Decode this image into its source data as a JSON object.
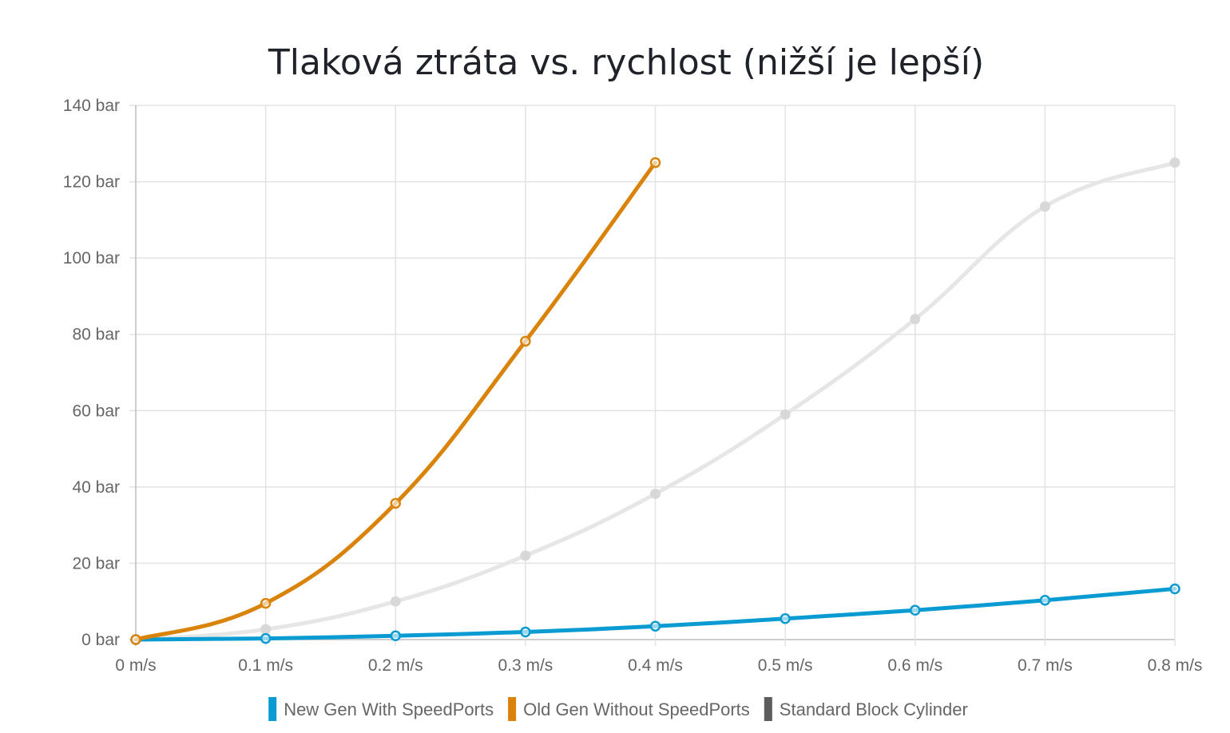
{
  "chart_data": {
    "type": "line",
    "title": "Tlaková ztráta vs. rychlost (nižší je lepší)",
    "xlabel": "",
    "ylabel": "",
    "x": [
      0,
      0.1,
      0.2,
      0.3,
      0.4,
      0.5,
      0.6,
      0.7,
      0.8
    ],
    "x_tick_labels": [
      "0 m/s",
      "0.1 m/s",
      "0.2 m/s",
      "0.3 m/s",
      "0.4 m/s",
      "0.5 m/s",
      "0.6 m/s",
      "0.7 m/s",
      "0.8 m/s"
    ],
    "y_tick_labels": [
      "0 bar",
      "20 bar",
      "40 bar",
      "60 bar",
      "80 bar",
      "100 bar",
      "120 bar",
      "140 bar"
    ],
    "y_ticks": [
      0,
      20,
      40,
      60,
      80,
      100,
      120,
      140
    ],
    "xlim": [
      0,
      0.8
    ],
    "ylim": [
      0,
      140
    ],
    "grid": true,
    "legend_position": "bottom-center",
    "series": [
      {
        "name": "New Gen With SpeedPorts",
        "color": "#0a9bd2",
        "values": [
          0,
          0.3,
          1,
          2,
          3.5,
          5.5,
          7.7,
          10.3,
          13.3
        ],
        "dimmed": false
      },
      {
        "name": "Old Gen Without SpeedPorts",
        "color": "#d9830b",
        "values": [
          0,
          9.5,
          35.7,
          78.2,
          125,
          null,
          null,
          null,
          null
        ],
        "dimmed": false
      },
      {
        "name": "Standard Block Cylinder",
        "color": "#5c5c5c",
        "values": [
          0,
          2.7,
          10,
          22,
          38.2,
          59,
          84,
          113.5,
          125
        ],
        "dimmed": true
      }
    ]
  }
}
